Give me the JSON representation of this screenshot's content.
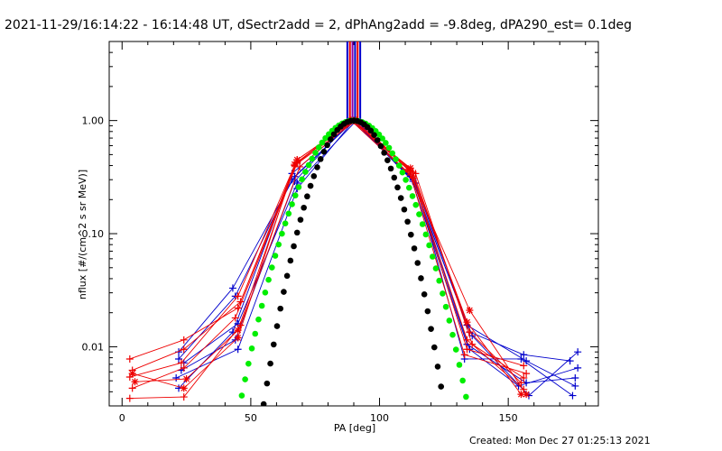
{
  "chart_data": {
    "type": "line",
    "title": "2021-11-29/16:14:22 - 16:14:48 UT, dSectr2add = 2, dPhAng2add = -9.8deg, dPA290_est=  0.1deg",
    "xlabel": "PA [deg]",
    "ylabel": "nflux [#/(cm^2 s sr MeV)]",
    "footer": "Created: Mon Dec 27 01:25:13 2021",
    "xlim": [
      -5,
      185
    ],
    "ylim": [
      0.003,
      5.0
    ],
    "yscale": "log",
    "x_ticks": [
      0,
      50,
      100,
      150
    ],
    "x_tick_labels": [
      "0",
      "50",
      "100",
      "150"
    ],
    "y_ticks": [
      0.01,
      0.1,
      1.0
    ],
    "y_tick_labels": [
      "0.01",
      "0.10",
      "1.00"
    ],
    "grid": false,
    "colors": {
      "red": "#ee0000",
      "blue": "#0000cc",
      "green": "#00ee00",
      "black": "#000000",
      "purple": "#8800aa"
    },
    "vertical_markers": {
      "x": [
        87.5,
        88.5,
        89.5,
        90.5,
        91.5,
        92.5
      ],
      "colors": [
        "#0000cc",
        "#ee0000",
        "#8800aa",
        "#0000cc",
        "#ee0000",
        "#0000cc"
      ],
      "y_from": 1.0,
      "y_to": 5.0
    },
    "series": [
      {
        "color": "#0000cc",
        "marker": "plus",
        "x": [
          22,
          43,
          67,
          90,
          113,
          134,
          157,
          176
        ],
        "y": [
          0.009,
          0.033,
          0.32,
          1.0,
          0.29,
          0.0155,
          0.0075,
          0.0045
        ]
      },
      {
        "color": "#0000cc",
        "marker": "plus",
        "x": [
          22,
          44,
          66,
          90,
          112,
          135,
          156,
          174
        ],
        "y": [
          0.0078,
          0.028,
          0.3,
          1.0,
          0.33,
          0.0135,
          0.0085,
          0.0075
        ]
      },
      {
        "color": "#0000cc",
        "marker": "plus",
        "x": [
          23,
          44,
          67,
          89,
          113,
          136,
          158,
          177
        ],
        "y": [
          0.0062,
          0.0115,
          0.29,
          1.0,
          0.31,
          0.0125,
          0.0037,
          0.009
        ]
      },
      {
        "color": "#0000cc",
        "marker": "plus",
        "x": [
          21,
          45,
          68,
          90,
          114,
          133,
          155,
          175
        ],
        "y": [
          0.0053,
          0.0095,
          0.25,
          1.0,
          0.28,
          0.0078,
          0.0078,
          0.0037
        ]
      },
      {
        "color": "#0000cc",
        "marker": "plus",
        "x": [
          24,
          45,
          68,
          91,
          112,
          134,
          157,
          176
        ],
        "y": [
          0.0072,
          0.016,
          0.28,
          1.0,
          0.32,
          0.0105,
          0.0048,
          0.0053
        ]
      },
      {
        "color": "#0000cc",
        "marker": "plus",
        "x": [
          22,
          43,
          66,
          90,
          113,
          135,
          154,
          177
        ],
        "y": [
          0.0043,
          0.0135,
          0.34,
          1.0,
          0.3,
          0.0095,
          0.0045,
          0.0065
        ]
      },
      {
        "color": "#ee0000",
        "marker": "plus",
        "x": [
          3,
          24,
          45,
          68,
          90,
          112,
          134,
          156
        ],
        "y": [
          0.0078,
          0.0115,
          0.022,
          0.45,
          1.0,
          0.36,
          0.0095,
          0.0068
        ]
      },
      {
        "color": "#ee0000",
        "marker": "plus",
        "x": [
          4,
          24,
          46,
          68,
          90,
          112,
          133,
          157
        ],
        "y": [
          0.0062,
          0.0095,
          0.025,
          0.43,
          1.0,
          0.33,
          0.0085,
          0.0058
        ]
      },
      {
        "color": "#ee0000",
        "marker": "plus",
        "x": [
          3,
          23,
          45,
          67,
          91,
          113,
          135,
          155
        ],
        "y": [
          0.0054,
          0.0072,
          0.028,
          0.4,
          1.0,
          0.35,
          0.0135,
          0.0048
        ]
      },
      {
        "color": "#ee0000",
        "marker": "plus",
        "x": [
          4,
          24,
          44,
          68,
          89,
          113,
          134,
          156
        ],
        "y": [
          0.0043,
          0.0065,
          0.018,
          0.42,
          1.0,
          0.31,
          0.0115,
          0.0042
        ]
      },
      {
        "color": "#ee0000",
        "marker": "star",
        "x": [
          5,
          25,
          45,
          68,
          90,
          111,
          135,
          157
        ],
        "y": [
          0.0049,
          0.0052,
          0.014,
          0.45,
          1.0,
          0.37,
          0.021,
          0.0038
        ]
      },
      {
        "color": "#ee0000",
        "marker": "plus",
        "x": [
          3,
          24,
          46,
          69,
          90,
          114,
          136,
          156
        ],
        "y": [
          0.0035,
          0.0036,
          0.0155,
          0.39,
          1.0,
          0.34,
          0.0105,
          0.0053
        ]
      },
      {
        "color": "#ee0000",
        "marker": "star",
        "x": [
          4,
          24,
          45,
          67,
          89,
          112,
          134,
          155
        ],
        "y": [
          0.0058,
          0.0043,
          0.012,
          0.41,
          1.0,
          0.38,
          0.0165,
          0.0038
        ]
      }
    ],
    "fits": [
      {
        "name": "green",
        "color": "#00ee00",
        "center": 90,
        "width": 13.0,
        "xmin": 40,
        "xmax": 156
      },
      {
        "name": "black",
        "color": "#000000",
        "center": 90,
        "width": 10.3,
        "xmin": 42,
        "xmax": 144
      }
    ]
  }
}
